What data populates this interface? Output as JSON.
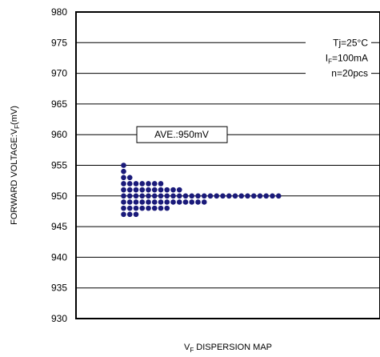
{
  "chart_data": {
    "type": "scatter",
    "title": "",
    "xlabel": "V",
    "xlabel_sub": "F",
    "xlabel_tail": " DISPERSION MAP",
    "ylabel": "FORWARD VOLTAGE:V",
    "ylabel_sub": "F",
    "ylabel_tail": "(mV)",
    "ylim": [
      930,
      980
    ],
    "yticks": [
      930,
      935,
      940,
      945,
      950,
      955,
      960,
      965,
      970,
      975,
      980
    ],
    "grid": true,
    "annotations": {
      "conditions": [
        {
          "text": "Tj=25°C"
        },
        {
          "main": "I",
          "sub": "F",
          "tail": "=100mA"
        },
        {
          "text": "n=20pcs"
        }
      ],
      "average_label": "AVE.:950mV"
    },
    "dot_color": "#1a1a7a",
    "columns": [
      {
        "values": [
          947,
          948,
          949,
          950,
          951,
          952,
          953,
          954,
          955
        ]
      },
      {
        "values": [
          947,
          948,
          949,
          950,
          951,
          952,
          953
        ]
      },
      {
        "values": [
          947,
          948,
          949,
          950,
          951,
          952
        ]
      },
      {
        "values": [
          948,
          949,
          950,
          951,
          952
        ]
      },
      {
        "values": [
          948,
          949,
          950,
          951,
          952
        ]
      },
      {
        "values": [
          948,
          949,
          950,
          951,
          952
        ]
      },
      {
        "values": [
          948,
          949,
          950,
          951,
          952
        ]
      },
      {
        "values": [
          948,
          949,
          950,
          951
        ]
      },
      {
        "values": [
          949,
          950,
          951
        ]
      },
      {
        "values": [
          949,
          950,
          951
        ]
      },
      {
        "values": [
          949,
          950
        ]
      },
      {
        "values": [
          949,
          950
        ]
      },
      {
        "values": [
          949,
          950
        ]
      },
      {
        "values": [
          949,
          950
        ]
      },
      {
        "values": [
          950
        ]
      },
      {
        "values": [
          950
        ]
      },
      {
        "values": [
          950
        ]
      },
      {
        "values": [
          950
        ]
      },
      {
        "values": [
          950
        ]
      },
      {
        "values": [
          950
        ]
      },
      {
        "values": [
          950
        ]
      },
      {
        "values": [
          950
        ]
      },
      {
        "values": [
          950
        ]
      },
      {
        "values": [
          950
        ]
      },
      {
        "values": [
          950
        ]
      },
      {
        "values": [
          950
        ]
      }
    ]
  }
}
